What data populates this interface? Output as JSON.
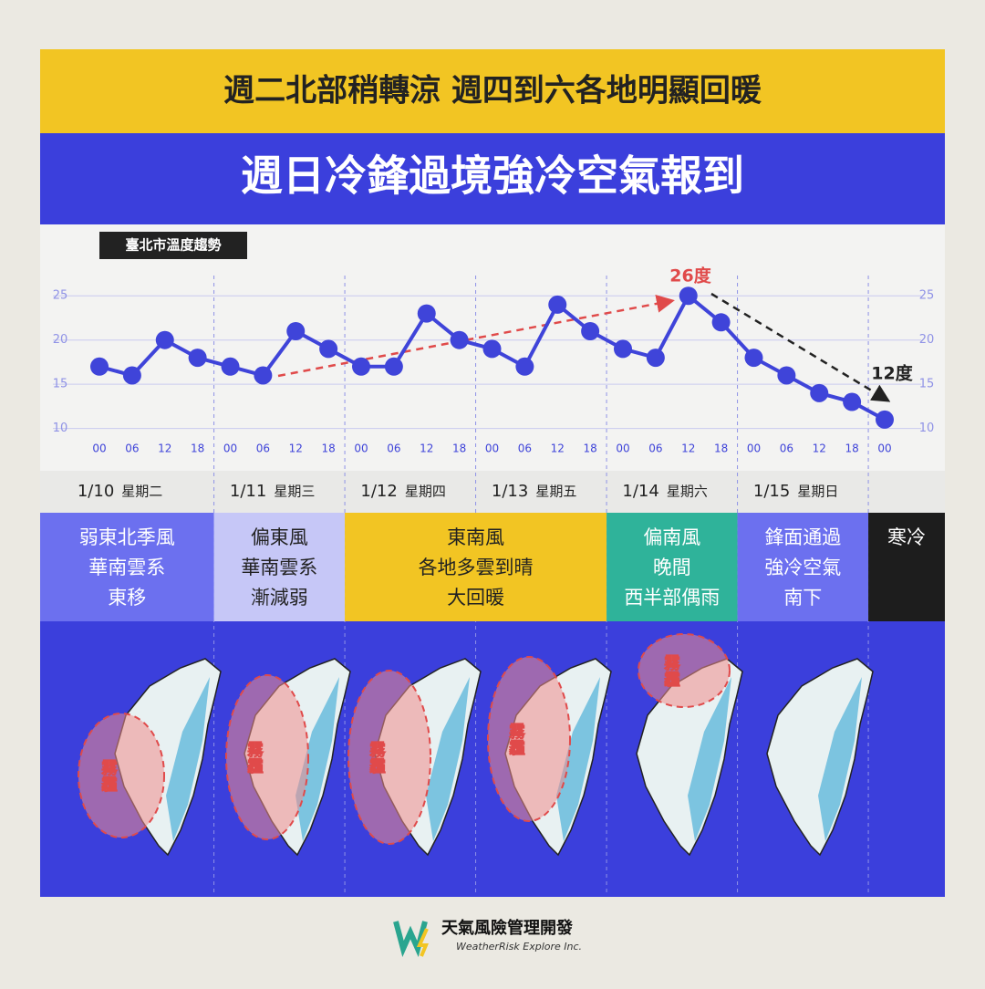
{
  "banner_top": "週二北部稍轉涼 週四到六各地明顯回暖",
  "banner_main": "週日冷鋒過境強冷空氣報到",
  "chart_data": {
    "type": "line",
    "title": "臺北市溫度趨勢",
    "categories": [
      "00",
      "06",
      "12",
      "18",
      "00",
      "06",
      "12",
      "18",
      "00",
      "06",
      "12",
      "18",
      "00",
      "06",
      "12",
      "18",
      "00",
      "06",
      "12",
      "18",
      "00",
      "06",
      "12",
      "18",
      "00"
    ],
    "series": [
      {
        "name": "臺北市溫度",
        "color": "#3f44d9",
        "values": [
          17,
          16,
          20,
          18,
          17,
          16,
          21,
          19,
          17,
          17,
          23,
          20,
          19,
          17,
          24,
          21,
          19,
          18,
          25,
          22,
          18,
          16,
          14,
          13,
          11
        ]
      }
    ],
    "ylim": [
      8,
      27.5
    ],
    "yticks": [
      10,
      15,
      20,
      25
    ],
    "grid": true,
    "annotations": [
      "26度",
      "12度"
    ]
  },
  "days": [
    {
      "date": "1/10",
      "weekday": "星期二"
    },
    {
      "date": "1/11",
      "weekday": "星期三"
    },
    {
      "date": "1/12",
      "weekday": "星期四"
    },
    {
      "date": "1/13",
      "weekday": "星期五"
    },
    {
      "date": "1/14",
      "weekday": "星期六"
    },
    {
      "date": "1/15",
      "weekday": "星期日"
    }
  ],
  "weather": [
    {
      "lines": [
        "弱東北季風",
        "華南雲系",
        "東移"
      ]
    },
    {
      "lines": [
        "偏東風",
        "華南雲系",
        "漸減弱"
      ]
    },
    {
      "lines": [
        "東南風",
        "各地多雲到晴",
        "大回暖"
      ]
    },
    {
      "lines": [
        "偏南風",
        "晚間",
        "西半部偶雨"
      ]
    },
    {
      "lines": [
        "鋒面通過",
        "強冷空氣",
        "南下"
      ]
    },
    {
      "lines": [
        "寒冷"
      ]
    }
  ],
  "fog_labels": [
    "霧霾",
    "霧霾",
    "霧霾",
    "霧霾",
    "霧霾"
  ],
  "logo": {
    "name": "天氣風險管理開發",
    "english": "WeatherRisk Explore Inc."
  }
}
